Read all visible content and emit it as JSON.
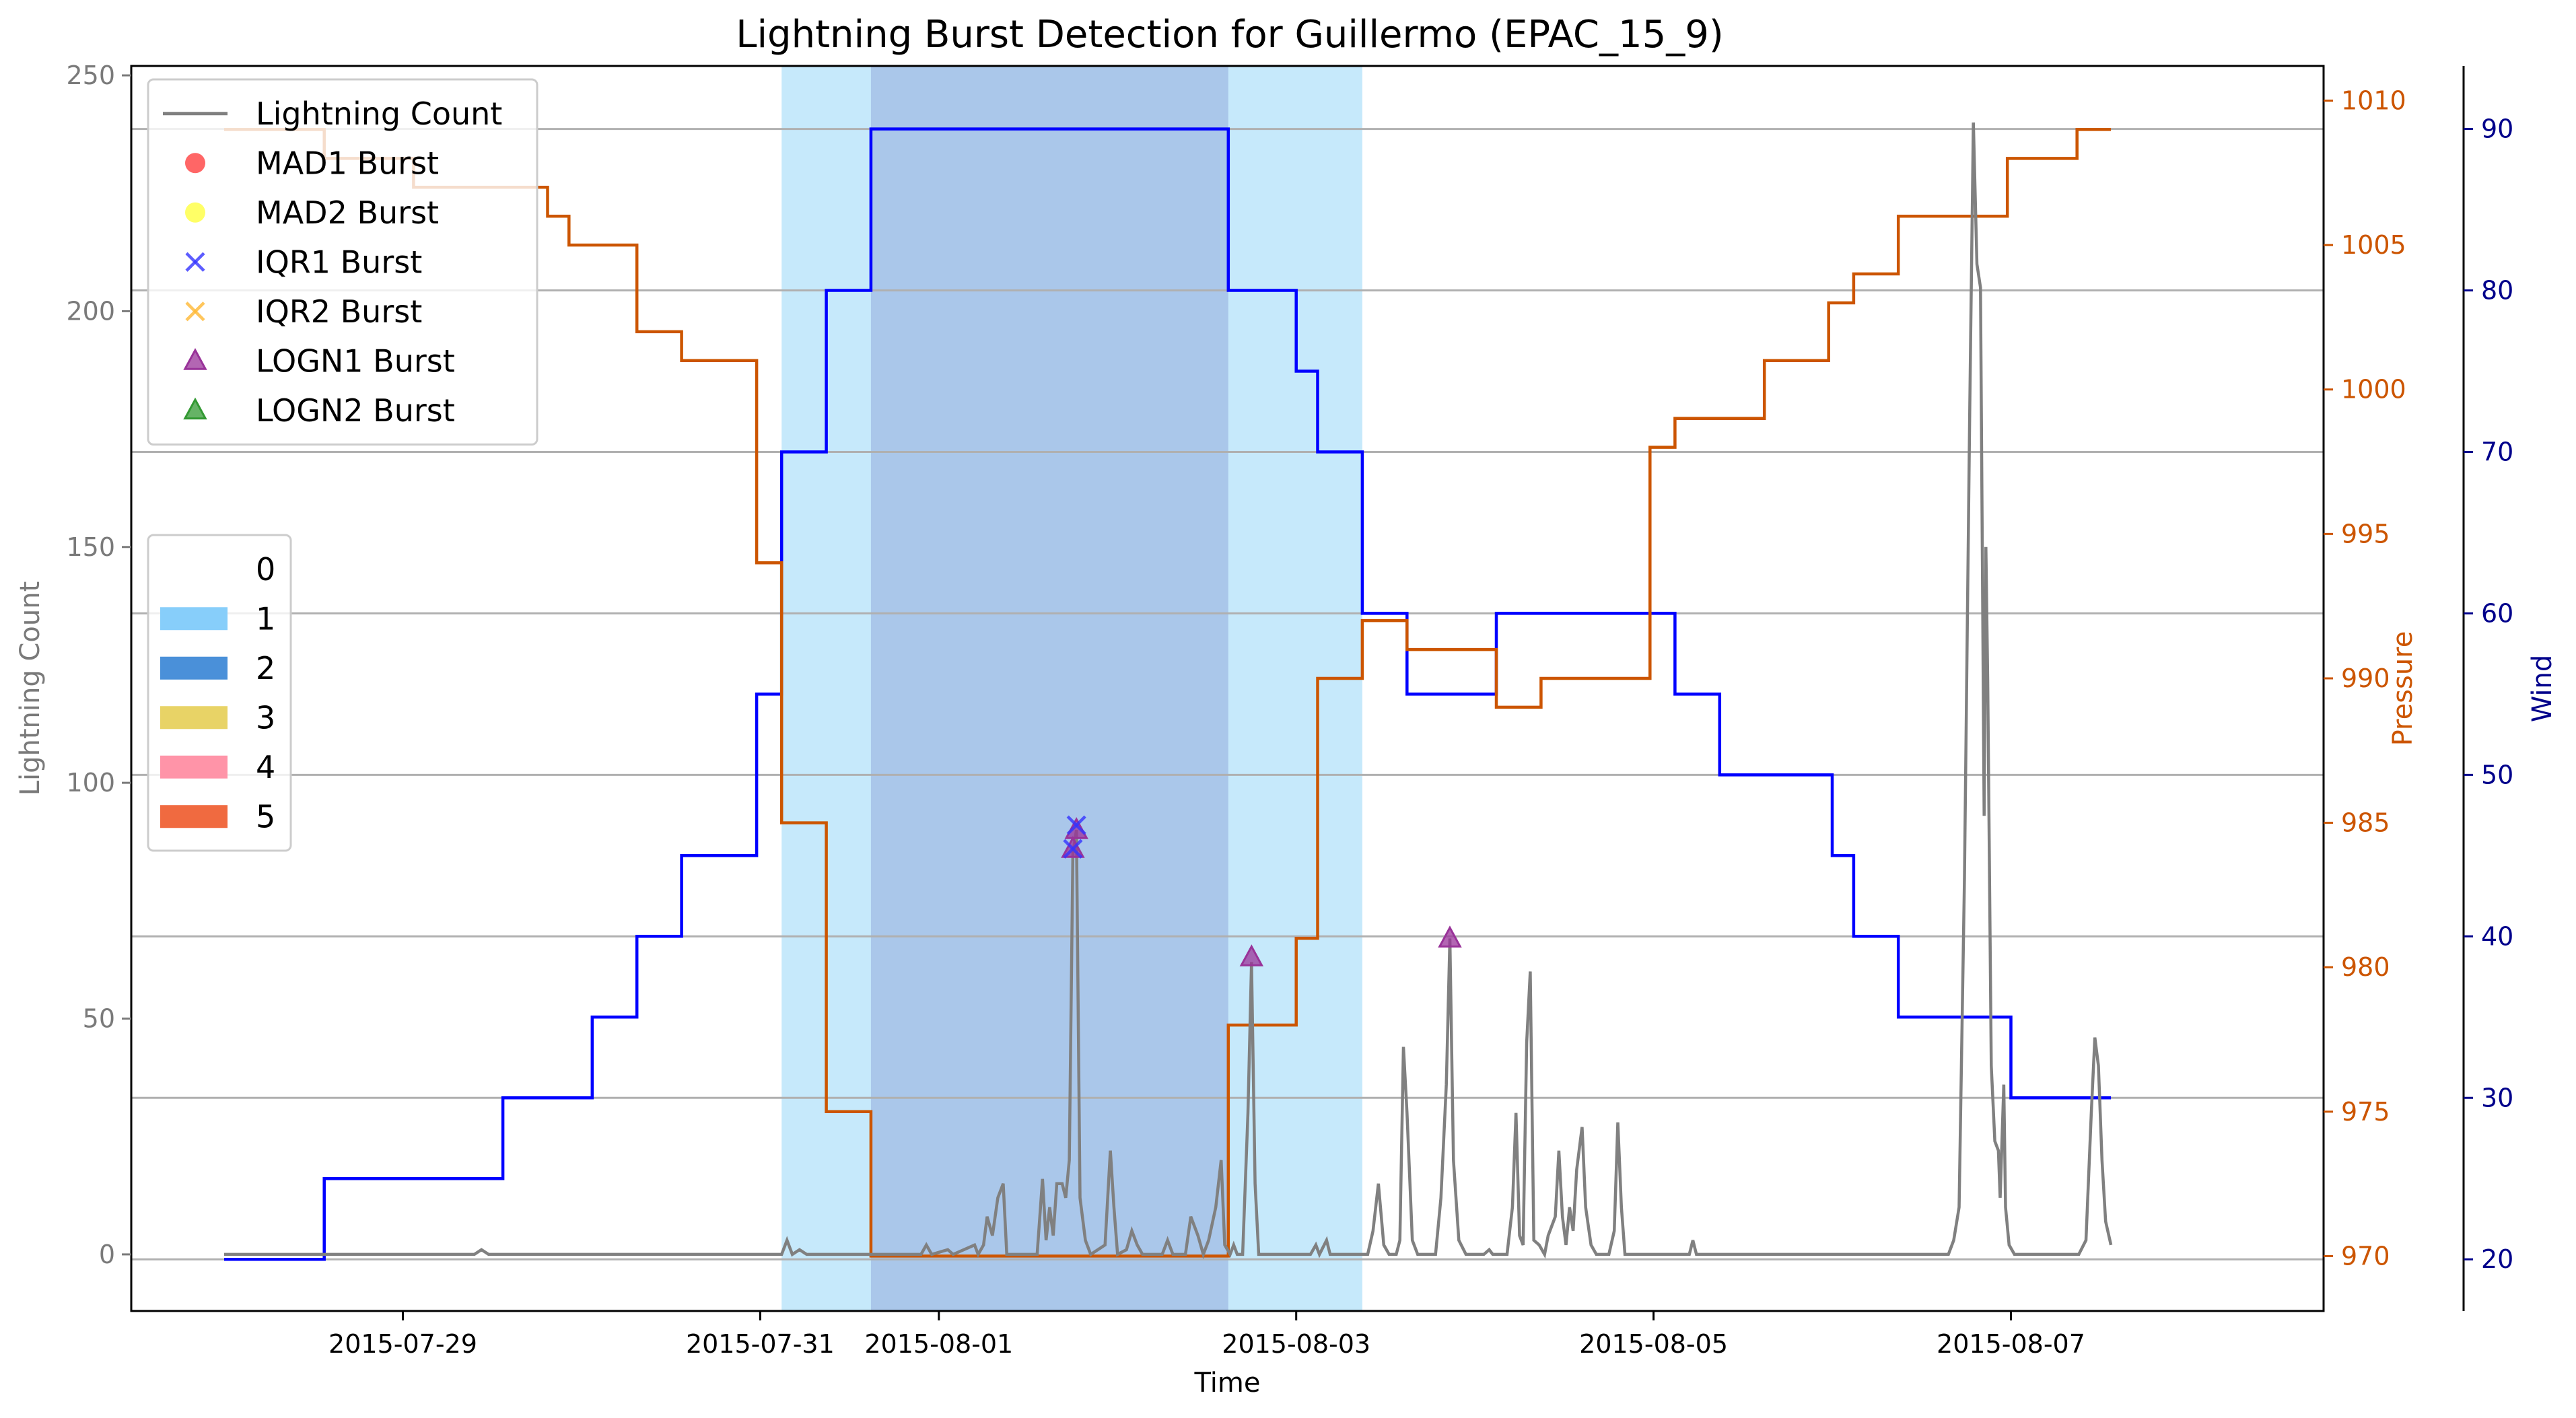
{
  "chart_data": {
    "type": "line",
    "title": "Lightning Burst Detection for Guillermo (EPAC_15_9)",
    "xlabel": "Time",
    "x_tick_labels": [
      {
        "label": "2015-07-29",
        "x": 1.0
      },
      {
        "label": "2015-07-31",
        "x": 3.0
      },
      {
        "label": "2015-08-01",
        "x": 4.0
      },
      {
        "label": "2015-08-03",
        "x": 6.0
      },
      {
        "label": "2015-08-05",
        "x": 8.0
      },
      {
        "label": "2015-08-07",
        "x": 10.0
      }
    ],
    "x_origin_date": "2015-07-28",
    "xlim": [
      -0.52,
      11.75
    ],
    "axes": {
      "lightning": {
        "label": "Lightning Count",
        "ylim": [
          -12,
          252
        ],
        "ticks": [
          0,
          50,
          100,
          150,
          200,
          250
        ],
        "color": "#7a7a7a"
      },
      "pressure": {
        "label": "Pressure",
        "ylim": [
          968.1,
          1011.2
        ],
        "ticks": [
          970,
          975,
          980,
          985,
          990,
          995,
          1000,
          1005,
          1010
        ],
        "color": "#cc5500"
      },
      "wind": {
        "label": "Wind",
        "ylim": [
          16.8,
          93.9
        ],
        "ticks": [
          20,
          30,
          40,
          50,
          60,
          70,
          80,
          90
        ],
        "color": "#00008b"
      }
    },
    "grid": "horizontal lines on wind axis",
    "series": [
      {
        "name": "Wind",
        "axis": "wind",
        "color": "#0000ff",
        "style": "step",
        "points": [
          [
            0.0,
            20
          ],
          [
            0.56,
            20
          ],
          [
            0.56,
            25
          ],
          [
            1.56,
            25
          ],
          [
            1.56,
            30
          ],
          [
            2.06,
            30
          ],
          [
            2.06,
            35
          ],
          [
            2.31,
            35
          ],
          [
            2.31,
            40
          ],
          [
            2.56,
            40
          ],
          [
            2.56,
            45
          ],
          [
            2.98,
            45
          ],
          [
            2.98,
            55
          ],
          [
            3.12,
            55
          ],
          [
            3.12,
            70
          ],
          [
            3.37,
            70
          ],
          [
            3.37,
            80
          ],
          [
            3.62,
            80
          ],
          [
            3.62,
            90
          ],
          [
            5.62,
            90
          ],
          [
            5.62,
            80
          ],
          [
            6.0,
            80
          ],
          [
            6.0,
            75
          ],
          [
            6.12,
            75
          ],
          [
            6.12,
            70
          ],
          [
            6.37,
            70
          ],
          [
            6.37,
            60
          ],
          [
            6.62,
            60
          ],
          [
            6.62,
            55
          ],
          [
            7.12,
            55
          ],
          [
            7.12,
            60
          ],
          [
            8.12,
            60
          ],
          [
            8.12,
            55
          ],
          [
            8.37,
            55
          ],
          [
            8.37,
            50
          ],
          [
            9.0,
            50
          ],
          [
            9.0,
            45
          ],
          [
            9.12,
            45
          ],
          [
            9.12,
            40
          ],
          [
            9.37,
            40
          ],
          [
            9.37,
            35
          ],
          [
            10.0,
            35
          ],
          [
            10.0,
            30
          ],
          [
            10.56,
            30
          ]
        ]
      },
      {
        "name": "Pressure",
        "axis": "pressure",
        "color": "#cc5500",
        "style": "step",
        "points": [
          [
            0.0,
            1009
          ],
          [
            0.56,
            1009
          ],
          [
            0.56,
            1008
          ],
          [
            1.06,
            1008
          ],
          [
            1.06,
            1007
          ],
          [
            1.81,
            1007
          ],
          [
            1.81,
            1006
          ],
          [
            1.93,
            1006
          ],
          [
            1.93,
            1005
          ],
          [
            2.31,
            1005
          ],
          [
            2.31,
            1002
          ],
          [
            2.56,
            1002
          ],
          [
            2.56,
            1001
          ],
          [
            2.98,
            1001
          ],
          [
            2.98,
            994
          ],
          [
            3.12,
            994
          ],
          [
            3.12,
            985
          ],
          [
            3.37,
            985
          ],
          [
            3.37,
            975
          ],
          [
            3.62,
            975
          ],
          [
            3.62,
            970
          ],
          [
            5.62,
            970
          ],
          [
            5.62,
            978
          ],
          [
            6.0,
            978
          ],
          [
            6.0,
            981
          ],
          [
            6.12,
            981
          ],
          [
            6.12,
            990
          ],
          [
            6.37,
            990
          ],
          [
            6.37,
            992
          ],
          [
            6.62,
            992
          ],
          [
            6.62,
            991
          ],
          [
            7.12,
            991
          ],
          [
            7.12,
            989
          ],
          [
            7.37,
            989
          ],
          [
            7.37,
            990
          ],
          [
            7.98,
            990
          ],
          [
            7.98,
            998
          ],
          [
            8.12,
            998
          ],
          [
            8.12,
            999
          ],
          [
            8.62,
            999
          ],
          [
            8.62,
            1001
          ],
          [
            8.98,
            1001
          ],
          [
            8.98,
            1003
          ],
          [
            9.12,
            1003
          ],
          [
            9.12,
            1004
          ],
          [
            9.37,
            1004
          ],
          [
            9.37,
            1006
          ],
          [
            9.98,
            1006
          ],
          [
            9.98,
            1008
          ],
          [
            10.37,
            1008
          ],
          [
            10.37,
            1009
          ],
          [
            10.56,
            1009
          ]
        ]
      },
      {
        "name": "Lightning Count",
        "axis": "lightning",
        "color": "#808080",
        "style": "line",
        "points": [
          [
            0.0,
            0
          ],
          [
            1.4,
            0
          ],
          [
            1.44,
            1
          ],
          [
            1.48,
            0
          ],
          [
            3.12,
            0
          ],
          [
            3.15,
            3
          ],
          [
            3.18,
            0
          ],
          [
            3.22,
            1
          ],
          [
            3.26,
            0
          ],
          [
            3.9,
            0
          ],
          [
            3.93,
            2
          ],
          [
            3.96,
            0
          ],
          [
            4.05,
            1
          ],
          [
            4.08,
            0
          ],
          [
            4.2,
            2
          ],
          [
            4.22,
            0
          ],
          [
            4.25,
            2
          ],
          [
            4.27,
            8
          ],
          [
            4.3,
            4
          ],
          [
            4.33,
            12
          ],
          [
            4.36,
            15
          ],
          [
            4.38,
            0
          ],
          [
            4.55,
            0
          ],
          [
            4.58,
            16
          ],
          [
            4.6,
            3
          ],
          [
            4.62,
            10
          ],
          [
            4.64,
            4
          ],
          [
            4.66,
            15
          ],
          [
            4.69,
            15
          ],
          [
            4.71,
            12
          ],
          [
            4.73,
            20
          ],
          [
            4.75,
            85
          ],
          [
            4.77,
            90
          ],
          [
            4.79,
            12
          ],
          [
            4.82,
            3
          ],
          [
            4.85,
            0
          ],
          [
            4.93,
            2
          ],
          [
            4.96,
            22
          ],
          [
            4.98,
            10
          ],
          [
            5.0,
            0
          ],
          [
            5.05,
            1
          ],
          [
            5.08,
            5
          ],
          [
            5.11,
            2
          ],
          [
            5.14,
            0
          ],
          [
            5.25,
            0
          ],
          [
            5.28,
            3
          ],
          [
            5.31,
            0
          ],
          [
            5.38,
            0
          ],
          [
            5.41,
            8
          ],
          [
            5.45,
            4
          ],
          [
            5.48,
            0
          ],
          [
            5.51,
            3
          ],
          [
            5.55,
            10
          ],
          [
            5.58,
            20
          ],
          [
            5.6,
            2
          ],
          [
            5.63,
            0
          ],
          [
            5.65,
            2
          ],
          [
            5.67,
            0
          ],
          [
            5.7,
            0
          ],
          [
            5.73,
            30
          ],
          [
            5.75,
            62
          ],
          [
            5.77,
            15
          ],
          [
            5.79,
            0
          ],
          [
            6.08,
            0
          ],
          [
            6.11,
            2
          ],
          [
            6.13,
            0
          ],
          [
            6.17,
            3
          ],
          [
            6.19,
            0
          ],
          [
            6.4,
            0
          ],
          [
            6.43,
            5
          ],
          [
            6.46,
            15
          ],
          [
            6.49,
            2
          ],
          [
            6.52,
            0
          ],
          [
            6.56,
            0
          ],
          [
            6.58,
            3
          ],
          [
            6.6,
            44
          ],
          [
            6.62,
            30
          ],
          [
            6.65,
            3
          ],
          [
            6.68,
            0
          ],
          [
            6.78,
            0
          ],
          [
            6.81,
            12
          ],
          [
            6.84,
            36
          ],
          [
            6.86,
            67
          ],
          [
            6.88,
            20
          ],
          [
            6.91,
            3
          ],
          [
            6.95,
            0
          ],
          [
            7.05,
            0
          ],
          [
            7.08,
            1
          ],
          [
            7.1,
            0
          ],
          [
            7.18,
            0
          ],
          [
            7.21,
            10
          ],
          [
            7.23,
            30
          ],
          [
            7.25,
            4
          ],
          [
            7.27,
            2
          ],
          [
            7.29,
            45
          ],
          [
            7.31,
            60
          ],
          [
            7.33,
            3
          ],
          [
            7.36,
            2
          ],
          [
            7.39,
            0
          ],
          [
            7.41,
            4
          ],
          [
            7.45,
            8
          ],
          [
            7.47,
            22
          ],
          [
            7.49,
            8
          ],
          [
            7.51,
            2
          ],
          [
            7.53,
            10
          ],
          [
            7.55,
            5
          ],
          [
            7.57,
            18
          ],
          [
            7.6,
            27
          ],
          [
            7.62,
            10
          ],
          [
            7.65,
            2
          ],
          [
            7.68,
            0
          ],
          [
            7.75,
            0
          ],
          [
            7.78,
            5
          ],
          [
            7.8,
            28
          ],
          [
            7.82,
            10
          ],
          [
            7.84,
            0
          ],
          [
            8.2,
            0
          ],
          [
            8.22,
            3
          ],
          [
            8.24,
            0
          ],
          [
            9.65,
            0
          ],
          [
            9.68,
            3
          ],
          [
            9.71,
            10
          ],
          [
            9.74,
            80
          ],
          [
            9.77,
            180
          ],
          [
            9.79,
            240
          ],
          [
            9.81,
            210
          ],
          [
            9.83,
            205
          ],
          [
            9.85,
            93
          ],
          [
            9.86,
            150
          ],
          [
            9.87,
            122
          ],
          [
            9.89,
            40
          ],
          [
            9.91,
            24
          ],
          [
            9.93,
            22
          ],
          [
            9.94,
            12
          ],
          [
            9.96,
            36
          ],
          [
            9.97,
            10
          ],
          [
            9.99,
            2
          ],
          [
            10.02,
            0
          ],
          [
            10.38,
            0
          ],
          [
            10.42,
            3
          ],
          [
            10.45,
            30
          ],
          [
            10.47,
            46
          ],
          [
            10.49,
            40
          ],
          [
            10.51,
            20
          ],
          [
            10.53,
            7
          ],
          [
            10.56,
            2
          ]
        ]
      }
    ],
    "shaded_spans": [
      {
        "category": "1",
        "x0": 3.12,
        "x1": 6.37
      },
      {
        "category": "2",
        "x0": 3.62,
        "x1": 5.62
      }
    ],
    "markers": [
      {
        "type": "LOGN1 Burst",
        "x": 4.75,
        "lightning": 86
      },
      {
        "type": "IQR1 Burst",
        "x": 4.75,
        "lightning": 86
      },
      {
        "type": "LOGN1 Burst",
        "x": 4.77,
        "lightning": 90
      },
      {
        "type": "IQR1 Burst",
        "x": 4.77,
        "lightning": 91
      },
      {
        "type": "LOGN1 Burst",
        "x": 5.75,
        "lightning": 63
      },
      {
        "type": "LOGN1 Burst",
        "x": 6.86,
        "lightning": 67
      }
    ],
    "legend_bursts": {
      "placement": "top-left",
      "entries": [
        {
          "label": "Lightning Count",
          "kind": "line",
          "color": "#808080"
        },
        {
          "label": "MAD1 Burst",
          "kind": "circle",
          "color": "#ff3333"
        },
        {
          "label": "MAD2 Burst",
          "kind": "circle",
          "color": "#ffff33"
        },
        {
          "label": "IQR1 Burst",
          "kind": "x",
          "color": "#3333ff"
        },
        {
          "label": "IQR2 Burst",
          "kind": "x",
          "color": "#ffb833"
        },
        {
          "label": "LOGN1 Burst",
          "kind": "triangle",
          "color": "#993399"
        },
        {
          "label": "LOGN2 Burst",
          "kind": "triangle",
          "color": "#339933"
        }
      ]
    },
    "legend_categories": {
      "placement": "center-left",
      "entries": [
        {
          "label": "0",
          "color": "#ffffff"
        },
        {
          "label": "1",
          "color": "#87cefa"
        },
        {
          "label": "2",
          "color": "#4a90d9"
        },
        {
          "label": "3",
          "color": "#e8d366"
        },
        {
          "label": "4",
          "color": "#ff94a8"
        },
        {
          "label": "5",
          "color": "#f06a40"
        }
      ]
    },
    "category_colors": {
      "1": "#c6e9fb",
      "2": "#aac7ea"
    }
  }
}
